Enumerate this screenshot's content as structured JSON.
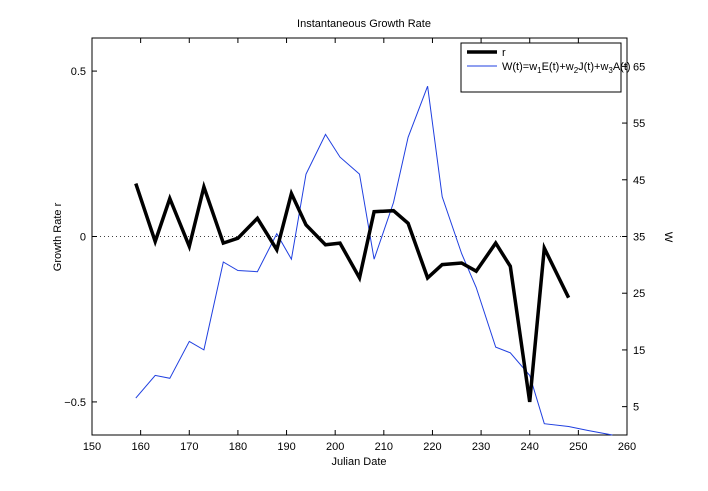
{
  "chart_data": {
    "type": "line",
    "title": "Instantaneous Growth Rate",
    "xlabel": "Julian Date",
    "ylabel_left": "Growth Rate r",
    "ylabel_right": "W",
    "xlim": [
      150,
      260
    ],
    "ylim_left": [
      -0.6,
      0.6
    ],
    "ylim_right": [
      0,
      70
    ],
    "xticks": [
      150,
      160,
      170,
      180,
      190,
      200,
      210,
      220,
      230,
      240,
      250,
      260
    ],
    "yticks_left": [
      -0.5,
      0,
      0.5
    ],
    "yticks_left_labels": [
      "−0.5",
      "0",
      "0.5"
    ],
    "yticks_right": [
      5,
      15,
      25,
      35,
      45,
      55,
      65
    ],
    "zero_line": "dotted",
    "grid": false,
    "legend_position": "top-right",
    "series": [
      {
        "name": "r",
        "axis": "left",
        "color": "#000000",
        "x": [
          159,
          163,
          166,
          170,
          173,
          177,
          180,
          184,
          188,
          191,
          194,
          198,
          201,
          205,
          208,
          212,
          215,
          219,
          222,
          226,
          229,
          233,
          236,
          240,
          243,
          248
        ],
        "y": [
          0.16,
          -0.015,
          0.115,
          -0.03,
          0.15,
          -0.02,
          -0.005,
          0.055,
          -0.04,
          0.13,
          0.035,
          -0.025,
          -0.02,
          -0.125,
          0.075,
          0.078,
          0.04,
          -0.125,
          -0.085,
          -0.08,
          -0.105,
          -0.02,
          -0.09,
          -0.5,
          -0.035,
          -0.185
        ]
      },
      {
        "name": "W(t)=w₁E(t)+w₂J(t)+w₃A(t)",
        "legend_parts": [
          "W(t)=w",
          "1",
          "E(t)+w",
          "2",
          "J(t)+w",
          "3",
          "A(t)"
        ],
        "axis": "right",
        "color": "#1f3fe0",
        "x": [
          159,
          163,
          166,
          170,
          173,
          177,
          180,
          184,
          188,
          191,
          194,
          198,
          201,
          205,
          208,
          212,
          215,
          219,
          222,
          226,
          229,
          233,
          236,
          240,
          243,
          248,
          252,
          257
        ],
        "y": [
          6.5,
          10.5,
          10.0,
          16.5,
          15.0,
          30.5,
          29.0,
          28.8,
          35.5,
          31.0,
          46.0,
          53.0,
          49.0,
          46.0,
          31.0,
          41.0,
          52.5,
          61.5,
          42.0,
          32.0,
          26.0,
          15.5,
          14.5,
          10.5,
          2.0,
          1.5,
          0.8,
          0.0
        ]
      }
    ]
  }
}
